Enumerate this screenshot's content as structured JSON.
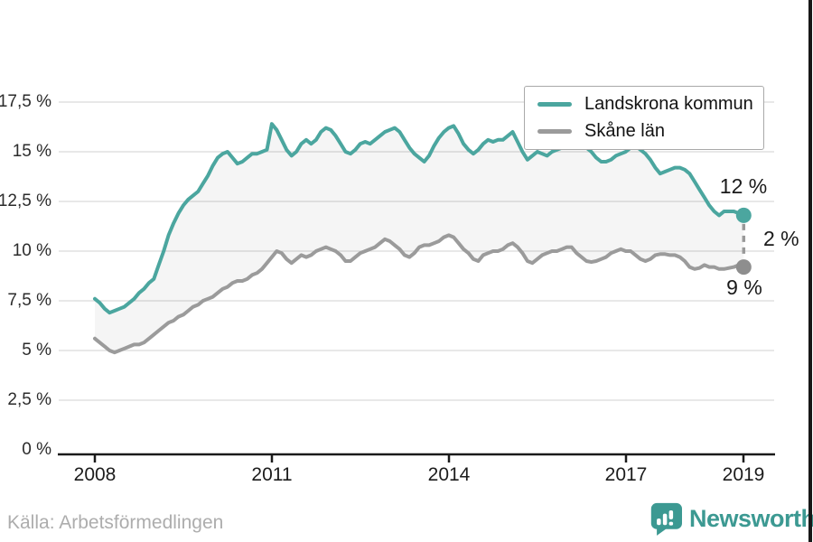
{
  "chart_data": {
    "type": "line",
    "x_unit": "month",
    "x_start": "2008-01",
    "x_end": "2019-01",
    "ylim": [
      0,
      18.5
    ],
    "grid": "horizontal",
    "legend_position": "top-right",
    "x_tick_labels": [
      "2008",
      "2011",
      "2014",
      "2017",
      "2019"
    ],
    "y_tick_labels": [
      "0 %",
      "2,5 %",
      "5 %",
      "7,5 %",
      "10 %",
      "12,5 %",
      "15 %",
      "17,5 %"
    ],
    "series": [
      {
        "name": "Landskrona kommun",
        "color": "#4ba69f",
        "values": [
          7.6,
          7.4,
          7.1,
          6.9,
          7.0,
          7.1,
          7.2,
          7.4,
          7.6,
          7.9,
          8.1,
          8.4,
          8.6,
          9.3,
          10.0,
          10.8,
          11.4,
          11.9,
          12.3,
          12.6,
          12.8,
          13.0,
          13.4,
          13.8,
          14.3,
          14.7,
          14.9,
          15.0,
          14.7,
          14.4,
          14.5,
          14.7,
          14.9,
          14.9,
          15.0,
          15.1,
          16.4,
          16.1,
          15.6,
          15.1,
          14.8,
          15.0,
          15.4,
          15.6,
          15.4,
          15.6,
          16.0,
          16.2,
          16.1,
          15.8,
          15.4,
          15.0,
          14.9,
          15.1,
          15.4,
          15.5,
          15.4,
          15.6,
          15.8,
          16.0,
          16.1,
          16.2,
          16.0,
          15.6,
          15.2,
          14.9,
          14.7,
          14.5,
          14.8,
          15.3,
          15.7,
          16.0,
          16.2,
          16.3,
          15.9,
          15.4,
          15.1,
          14.9,
          15.1,
          15.4,
          15.6,
          15.5,
          15.6,
          15.6,
          15.8,
          16.0,
          15.5,
          15.0,
          14.6,
          14.8,
          15.0,
          14.9,
          14.8,
          15.0,
          15.1,
          15.2,
          15.3,
          15.4,
          15.5,
          15.4,
          15.2,
          15.0,
          14.7,
          14.5,
          14.5,
          14.6,
          14.8,
          14.9,
          15.0,
          15.2,
          15.3,
          15.1,
          14.9,
          14.6,
          14.2,
          13.9,
          14.0,
          14.1,
          14.2,
          14.2,
          14.1,
          13.9,
          13.5,
          13.1,
          12.7,
          12.3,
          12.0,
          11.8,
          12.0,
          12.0,
          12.0,
          11.9,
          11.8
        ]
      },
      {
        "name": "Skåne län",
        "color": "#9b9b9b",
        "values": [
          5.6,
          5.4,
          5.2,
          5.0,
          4.9,
          5.0,
          5.1,
          5.2,
          5.3,
          5.3,
          5.4,
          5.6,
          5.8,
          6.0,
          6.2,
          6.4,
          6.5,
          6.7,
          6.8,
          7.0,
          7.2,
          7.3,
          7.5,
          7.6,
          7.7,
          7.9,
          8.1,
          8.2,
          8.4,
          8.5,
          8.5,
          8.6,
          8.8,
          8.9,
          9.1,
          9.4,
          9.7,
          10.0,
          9.9,
          9.6,
          9.4,
          9.6,
          9.8,
          9.7,
          9.8,
          10.0,
          10.1,
          10.2,
          10.1,
          10.0,
          9.8,
          9.5,
          9.5,
          9.7,
          9.9,
          10.0,
          10.1,
          10.2,
          10.4,
          10.6,
          10.5,
          10.3,
          10.1,
          9.8,
          9.7,
          9.9,
          10.2,
          10.3,
          10.3,
          10.4,
          10.5,
          10.7,
          10.8,
          10.7,
          10.4,
          10.1,
          9.9,
          9.6,
          9.5,
          9.8,
          9.9,
          10.0,
          10.0,
          10.1,
          10.3,
          10.4,
          10.2,
          9.9,
          9.5,
          9.4,
          9.6,
          9.8,
          9.9,
          10.0,
          10.0,
          10.1,
          10.2,
          10.2,
          9.9,
          9.7,
          9.5,
          9.45,
          9.5,
          9.6,
          9.7,
          9.9,
          10.0,
          10.1,
          10.0,
          10.0,
          9.8,
          9.6,
          9.5,
          9.6,
          9.8,
          9.85,
          9.85,
          9.8,
          9.8,
          9.7,
          9.5,
          9.2,
          9.1,
          9.15,
          9.3,
          9.2,
          9.2,
          9.1,
          9.1,
          9.15,
          9.2,
          9.3,
          9.2
        ]
      }
    ],
    "annotations": [
      {
        "text": "12 %"
      },
      {
        "text": "2 %"
      },
      {
        "text": "9 %"
      }
    ]
  },
  "colors": {
    "accent_teal": "#4ba69f",
    "series_gray": "#9b9b9b",
    "gridline": "#d9d9d9",
    "axis": "#1a1a1a",
    "brand_teal": "#3c9992",
    "band_fill": "rgba(0,0,0,0.04)"
  },
  "footer": {
    "source": "Källa: Arbetsförmedlingen",
    "brand": "Newsworthy"
  }
}
